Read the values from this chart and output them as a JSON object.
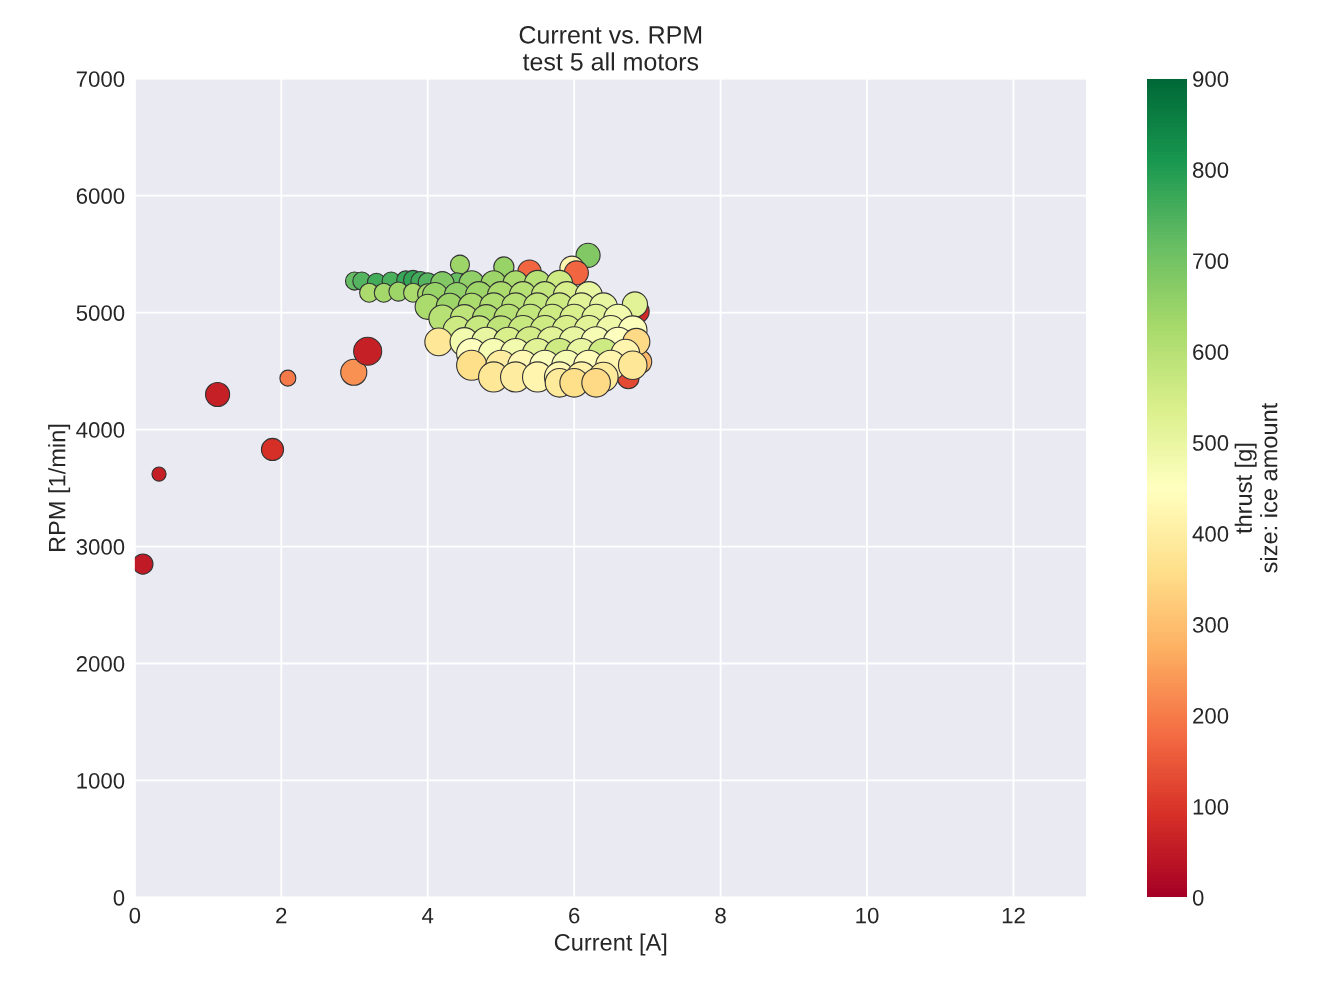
{
  "chart_data": {
    "type": "bubble",
    "title": "Current vs. RPM\ntest 5 all motors",
    "xlabel": "Current [A]",
    "ylabel": "RPM [1/min]",
    "clabel": "thrust [g]\nsize: ice amount",
    "x": [
      0.11,
      0.33,
      1.13,
      1.88,
      2.09,
      2.99,
      3.18,
      6.19,
      5.97,
      6.03,
      5.39,
      6.86,
      6.83,
      6.74,
      6.9,
      4.44,
      5.04,
      3.0,
      3.1,
      3.3,
      3.5,
      3.7,
      3.8,
      3.9,
      4.0,
      4.2,
      4.4,
      3.2,
      3.4,
      3.6,
      3.8,
      4.0,
      4.2,
      4.6,
      4.9,
      5.2,
      5.5,
      5.8,
      4.1,
      4.4,
      4.7,
      5.0,
      5.3,
      5.6,
      5.9,
      6.2,
      4.0,
      4.3,
      4.6,
      4.9,
      5.2,
      5.5,
      5.8,
      6.1,
      6.4,
      4.2,
      4.5,
      4.8,
      5.1,
      5.4,
      5.7,
      6.0,
      6.3,
      6.6,
      4.4,
      4.7,
      5.0,
      5.3,
      5.6,
      5.9,
      6.2,
      6.5,
      6.8,
      4.15,
      4.5,
      4.8,
      5.1,
      5.4,
      5.7,
      6.0,
      6.3,
      6.6,
      6.85,
      4.6,
      4.9,
      5.2,
      5.5,
      5.8,
      6.1,
      6.4,
      6.7,
      4.6,
      5.0,
      5.3,
      5.6,
      5.9,
      6.2,
      6.5,
      6.8,
      4.9,
      5.2,
      5.5,
      5.8,
      6.1,
      6.4,
      5.8,
      6.0,
      6.3
    ],
    "values": [
      2850,
      3620,
      4300,
      3830,
      4440,
      4490,
      4670,
      5490,
      5380,
      5340,
      5350,
      5010,
      5070,
      4440,
      4580,
      5410,
      5390,
      5270,
      5270,
      5260,
      5270,
      5280,
      5280,
      5270,
      5260,
      5270,
      5260,
      5170,
      5170,
      5180,
      5170,
      5160,
      5250,
      5250,
      5250,
      5250,
      5250,
      5250,
      5150,
      5150,
      5150,
      5150,
      5150,
      5150,
      5150,
      5150,
      5050,
      5050,
      5050,
      5050,
      5050,
      5050,
      5050,
      5050,
      5050,
      4950,
      4950,
      4950,
      4950,
      4950,
      4950,
      4950,
      4950,
      4950,
      4850,
      4850,
      4850,
      4850,
      4850,
      4850,
      4850,
      4850,
      4850,
      4750,
      4750,
      4750,
      4750,
      4750,
      4750,
      4750,
      4750,
      4750,
      4750,
      4650,
      4650,
      4650,
      4650,
      4650,
      4650,
      4650,
      4650,
      4550,
      4550,
      4550,
      4550,
      4550,
      4550,
      4550,
      4550,
      4450,
      4450,
      4450,
      4450,
      4450,
      4450,
      4400,
      4400,
      4400
    ],
    "cvalues": [
      50,
      60,
      60,
      90,
      200,
      230,
      60,
      680,
      420,
      170,
      170,
      80,
      520,
      130,
      290,
      640,
      650,
      720,
      740,
      760,
      750,
      770,
      780,
      760,
      740,
      730,
      720,
      620,
      630,
      640,
      620,
      630,
      680,
      660,
      640,
      620,
      600,
      560,
      650,
      660,
      640,
      620,
      600,
      580,
      540,
      500,
      620,
      640,
      620,
      610,
      600,
      580,
      560,
      520,
      500,
      600,
      590,
      610,
      600,
      580,
      560,
      540,
      520,
      480,
      560,
      570,
      590,
      570,
      560,
      540,
      520,
      490,
      460,
      380,
      480,
      500,
      540,
      550,
      520,
      500,
      470,
      450,
      350,
      450,
      470,
      480,
      520,
      560,
      500,
      560,
      420,
      360,
      400,
      430,
      460,
      470,
      440,
      420,
      380,
      380,
      400,
      420,
      430,
      410,
      390,
      390,
      360,
      350
    ],
    "sizes": [
      0.45,
      0.22,
      0.64,
      0.54,
      0.28,
      0.75,
      0.87,
      0.64,
      0.64,
      0.64,
      0.6,
      0.64,
      0.7,
      0.5,
      0.6,
      0.4,
      0.45,
      0.36,
      0.36,
      0.36,
      0.36,
      0.36,
      0.4,
      0.4,
      0.4,
      0.4,
      0.4,
      0.4,
      0.4,
      0.4,
      0.4,
      0.45,
      0.6,
      0.7,
      0.7,
      0.7,
      0.75,
      0.75,
      0.7,
      0.7,
      0.8,
      0.8,
      0.8,
      0.8,
      0.8,
      0.8,
      0.7,
      0.8,
      0.8,
      0.85,
      0.85,
      0.85,
      0.85,
      0.85,
      0.85,
      0.8,
      0.85,
      0.85,
      0.9,
      0.9,
      0.9,
      0.9,
      0.9,
      0.9,
      0.85,
      0.9,
      0.9,
      0.95,
      0.95,
      0.95,
      0.95,
      0.95,
      0.9,
      0.85,
      0.9,
      0.95,
      0.95,
      1.0,
      1.0,
      1.0,
      1.0,
      0.95,
      0.8,
      1.0,
      1.0,
      1.0,
      1.0,
      1.0,
      1.0,
      1.0,
      0.9,
      1.0,
      1.0,
      1.0,
      1.0,
      1.0,
      1.0,
      1.0,
      0.9,
      1.0,
      1.0,
      1.0,
      1.0,
      1.0,
      0.95,
      0.9,
      0.9,
      0.9
    ],
    "xlim": [
      0,
      13
    ],
    "xticks": [
      0,
      2,
      4,
      6,
      8,
      10,
      12
    ],
    "ylim": [
      0,
      7000
    ],
    "yticks": [
      0,
      1000,
      2000,
      3000,
      4000,
      5000,
      6000,
      7000
    ],
    "clim": [
      0,
      900
    ],
    "cticks": [
      0,
      100,
      200,
      300,
      400,
      500,
      600,
      700,
      800,
      900
    ],
    "grid": true,
    "legend": false
  }
}
